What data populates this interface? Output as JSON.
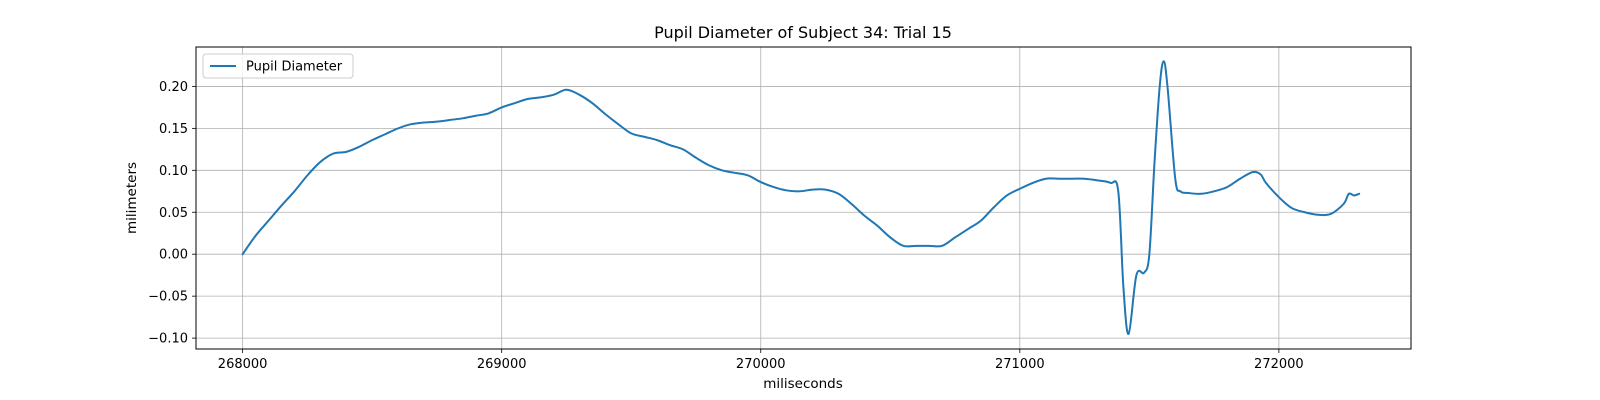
{
  "chart_data": {
    "type": "line",
    "title": "Pupil Diameter of Subject 34: Trial 15",
    "xlabel": "miliseconds",
    "ylabel": "milimeters",
    "xlim": [
      267820,
      272510
    ],
    "ylim": [
      -0.113,
      0.247
    ],
    "xticks": [
      268000,
      269000,
      270000,
      271000,
      272000
    ],
    "xtick_labels": [
      "268000",
      "269000",
      "270000",
      "271000",
      "272000"
    ],
    "yticks": [
      -0.1,
      -0.05,
      0.0,
      0.05,
      0.1,
      0.15,
      0.2
    ],
    "ytick_labels": [
      "−0.10",
      "−0.05",
      "0.00",
      "0.05",
      "0.10",
      "0.15",
      "0.20"
    ],
    "grid": true,
    "legend_position": "top-left",
    "series": [
      {
        "name": "Pupil Diameter",
        "color": "#1f77b4",
        "x": [
          268000,
          268050,
          268100,
          268150,
          268200,
          268250,
          268300,
          268350,
          268400,
          268450,
          268500,
          268550,
          268600,
          268650,
          268700,
          268750,
          268800,
          268850,
          268900,
          268950,
          269000,
          269050,
          269100,
          269150,
          269200,
          269250,
          269300,
          269350,
          269400,
          269450,
          269500,
          269550,
          269600,
          269650,
          269700,
          269750,
          269800,
          269850,
          269900,
          269950,
          270000,
          270050,
          270100,
          270150,
          270200,
          270250,
          270300,
          270350,
          270400,
          270450,
          270500,
          270550,
          270600,
          270650,
          270700,
          270750,
          270800,
          270850,
          270900,
          270950,
          271000,
          271050,
          271100,
          271150,
          271200,
          271250,
          271300,
          271350,
          271380,
          271400,
          271420,
          271450,
          271480,
          271500,
          271520,
          271540,
          271555,
          271570,
          271600,
          271620,
          271650,
          271700,
          271750,
          271800,
          271850,
          271900,
          271930,
          271950,
          272000,
          272050,
          272100,
          272150,
          272200,
          272250,
          272270,
          272290,
          272310
        ],
        "y": [
          0.0,
          0.022,
          0.04,
          0.058,
          0.075,
          0.094,
          0.11,
          0.12,
          0.122,
          0.128,
          0.136,
          0.143,
          0.15,
          0.155,
          0.157,
          0.158,
          0.16,
          0.162,
          0.165,
          0.168,
          0.175,
          0.18,
          0.185,
          0.187,
          0.19,
          0.196,
          0.19,
          0.18,
          0.167,
          0.155,
          0.144,
          0.14,
          0.136,
          0.13,
          0.125,
          0.115,
          0.106,
          0.1,
          0.097,
          0.094,
          0.086,
          0.08,
          0.076,
          0.075,
          0.077,
          0.077,
          0.072,
          0.06,
          0.046,
          0.034,
          0.02,
          0.01,
          0.01,
          0.01,
          0.01,
          0.02,
          0.03,
          0.04,
          0.056,
          0.07,
          0.078,
          0.085,
          0.09,
          0.09,
          0.09,
          0.09,
          0.088,
          0.085,
          0.075,
          -0.04,
          -0.095,
          -0.025,
          -0.022,
          0.0,
          0.11,
          0.2,
          0.23,
          0.2,
          0.09,
          0.075,
          0.073,
          0.072,
          0.075,
          0.08,
          0.09,
          0.098,
          0.095,
          0.085,
          0.068,
          0.055,
          0.05,
          0.047,
          0.048,
          0.06,
          0.072,
          0.07,
          0.072
        ]
      }
    ]
  }
}
